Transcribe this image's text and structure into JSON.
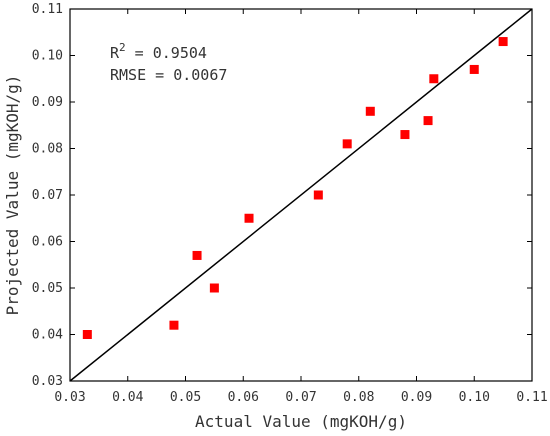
{
  "chart_data": {
    "type": "scatter",
    "xlabel": "Actual Value (mgKOH/g)",
    "ylabel": "Projected Value (mgKOH/g)",
    "xlim": [
      0.03,
      0.11
    ],
    "ylim": [
      0.03,
      0.11
    ],
    "x_ticks": [
      "0.03",
      "0.04",
      "0.05",
      "0.06",
      "0.07",
      "0.08",
      "0.09",
      "0.10",
      "0.11"
    ],
    "y_ticks": [
      "0.03",
      "0.04",
      "0.05",
      "0.06",
      "0.07",
      "0.08",
      "0.09",
      "0.10",
      "0.11"
    ],
    "grid": false,
    "marker_color": "#ff0000",
    "line_color": "#000000",
    "reference_line": {
      "x": [
        0.03,
        0.11
      ],
      "y": [
        0.03,
        0.11
      ]
    },
    "points": [
      {
        "x": 0.033,
        "y": 0.04
      },
      {
        "x": 0.048,
        "y": 0.042
      },
      {
        "x": 0.052,
        "y": 0.057
      },
      {
        "x": 0.055,
        "y": 0.05
      },
      {
        "x": 0.061,
        "y": 0.065
      },
      {
        "x": 0.073,
        "y": 0.07
      },
      {
        "x": 0.078,
        "y": 0.081
      },
      {
        "x": 0.082,
        "y": 0.088
      },
      {
        "x": 0.088,
        "y": 0.083
      },
      {
        "x": 0.092,
        "y": 0.086
      },
      {
        "x": 0.093,
        "y": 0.095
      },
      {
        "x": 0.1,
        "y": 0.097
      },
      {
        "x": 0.105,
        "y": 0.103
      }
    ],
    "annotations": {
      "r2_label": "R",
      "r2_sup": "2",
      "r2_value": " = 0.9504",
      "rmse": "RMSE = 0.0067"
    }
  }
}
